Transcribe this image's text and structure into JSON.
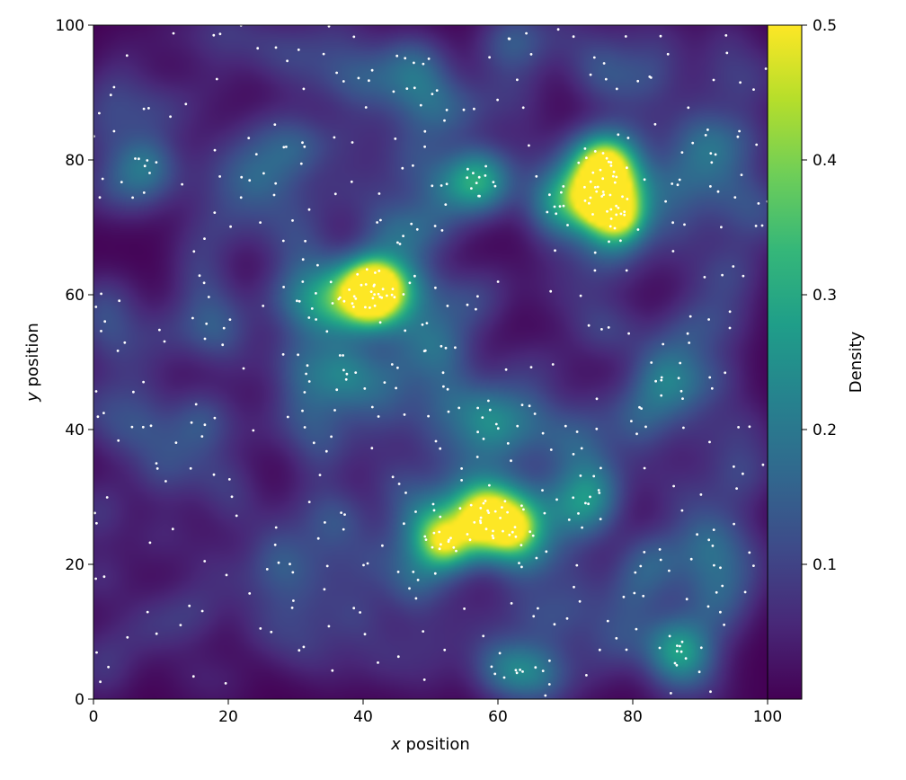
{
  "chart_data": {
    "type": "heatmap",
    "title": "",
    "xlabel_var": "x",
    "xlabel_rest": " position",
    "ylabel_var": "y",
    "ylabel_rest": " position",
    "xlim": [
      0,
      100
    ],
    "ylim": [
      0,
      100
    ],
    "x_ticks": [
      0,
      20,
      40,
      60,
      80,
      100
    ],
    "y_ticks": [
      0,
      20,
      40,
      60,
      80,
      100
    ],
    "colorbar": {
      "label": "Density",
      "range": [
        0.0,
        0.5
      ],
      "ticks": [
        "0.1",
        "0.2",
        "0.3",
        "0.4",
        "0.5"
      ],
      "tick_values": [
        0.1,
        0.2,
        0.3,
        0.4,
        0.5
      ],
      "colormap": "viridis",
      "colors": [
        "#440154",
        "#482878",
        "#3e4a89",
        "#31688e",
        "#26828e",
        "#1f9e89",
        "#35b779",
        "#6ece58",
        "#b5de2b",
        "#fde725"
      ]
    },
    "point_color": "#ffffff",
    "density_peaks": [
      {
        "x": 41,
        "y": 60,
        "density": 0.5
      },
      {
        "x": 75.5,
        "y": 75,
        "density": 0.48
      },
      {
        "x": 62,
        "y": 25.5,
        "density": 0.36
      },
      {
        "x": 58,
        "y": 27,
        "density": 0.3
      },
      {
        "x": 52,
        "y": 23.5,
        "density": 0.25
      },
      {
        "x": 42,
        "y": 61.5,
        "density": 0.3
      },
      {
        "x": 76,
        "y": 79,
        "density": 0.3
      },
      {
        "x": 78,
        "y": 71.5,
        "density": 0.22
      },
      {
        "x": 75,
        "y": 74,
        "density": 0.25
      }
    ],
    "clusters": [
      {
        "cx": 41,
        "cy": 60.5,
        "sx": 2.2,
        "sy": 1.8,
        "n": 30
      },
      {
        "cx": 75.5,
        "cy": 76.5,
        "sx": 1.6,
        "sy": 3.0,
        "n": 32
      },
      {
        "cx": 61.5,
        "cy": 25.5,
        "sx": 2.8,
        "sy": 1.8,
        "n": 22
      },
      {
        "cx": 52,
        "cy": 23.5,
        "sx": 1.8,
        "sy": 1.8,
        "n": 12
      },
      {
        "cx": 57.5,
        "cy": 27.5,
        "sx": 1.5,
        "sy": 1.2,
        "n": 9
      },
      {
        "cx": 78,
        "cy": 71.5,
        "sx": 1.5,
        "sy": 1.3,
        "n": 7
      },
      {
        "cx": 45,
        "cy": 70,
        "sx": 2.0,
        "sy": 2.0,
        "n": 6
      },
      {
        "cx": 50,
        "cy": 52,
        "sx": 1.8,
        "sy": 2.2,
        "n": 7
      },
      {
        "cx": 60,
        "cy": 40,
        "sx": 2.5,
        "sy": 2.5,
        "n": 8
      },
      {
        "cx": 38,
        "cy": 46,
        "sx": 3.0,
        "sy": 2.5,
        "n": 10
      },
      {
        "cx": 72,
        "cy": 30,
        "sx": 1.5,
        "sy": 2.5,
        "n": 7
      },
      {
        "cx": 86,
        "cy": 7,
        "sx": 2.0,
        "sy": 1.8,
        "n": 7
      },
      {
        "cx": 91,
        "cy": 82,
        "sx": 2.0,
        "sy": 2.5,
        "n": 7
      },
      {
        "cx": 45,
        "cy": 92,
        "sx": 2.5,
        "sy": 2.0,
        "n": 8
      },
      {
        "cx": 56,
        "cy": 76,
        "sx": 3.0,
        "sy": 2.5,
        "n": 7
      },
      {
        "cx": 63,
        "cy": 5,
        "sx": 2.0,
        "sy": 1.5,
        "n": 6
      },
      {
        "cx": 32,
        "cy": 60,
        "sx": 2.0,
        "sy": 2.0,
        "n": 6
      },
      {
        "cx": 14,
        "cy": 40,
        "sx": 1.5,
        "sy": 1.5,
        "n": 4
      }
    ],
    "n_background_points": 460,
    "point_seed": 20240511
  }
}
